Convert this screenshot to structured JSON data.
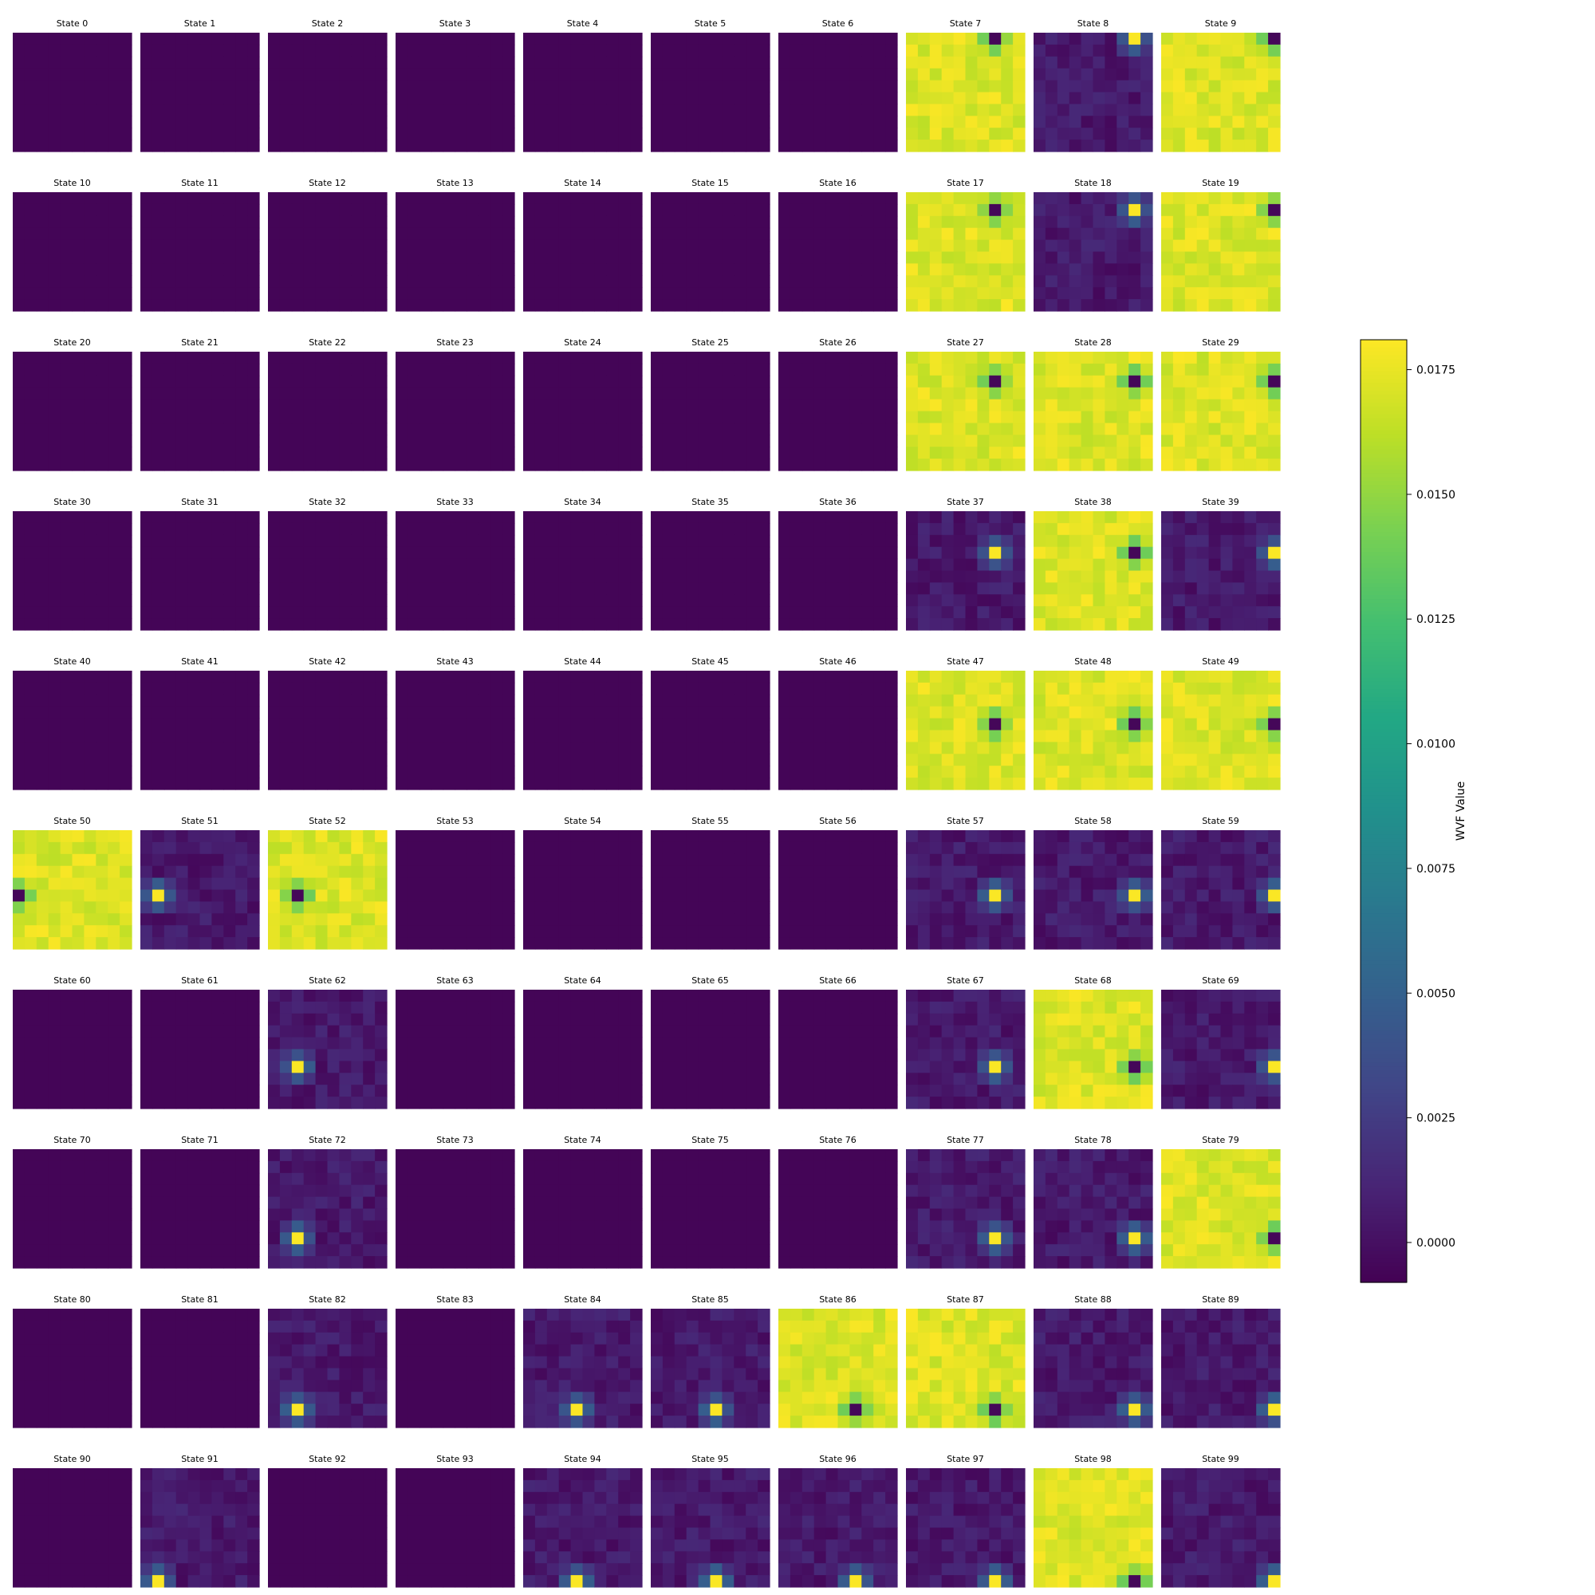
{
  "chart_data": {
    "type": "heatmap",
    "grid_layout": {
      "rows": 10,
      "columns": 10
    },
    "panel_resolution": [
      10,
      10
    ],
    "panel_title_prefix": "State ",
    "panel_titles": [
      "State 0",
      "State 1",
      "State 2",
      "State 3",
      "State 4",
      "State 5",
      "State 6",
      "State 7",
      "State 8",
      "State 9",
      "State 10",
      "State 11",
      "State 12",
      "State 13",
      "State 14",
      "State 15",
      "State 16",
      "State 17",
      "State 18",
      "State 19",
      "State 20",
      "State 21",
      "State 22",
      "State 23",
      "State 24",
      "State 25",
      "State 26",
      "State 27",
      "State 28",
      "State 29",
      "State 30",
      "State 31",
      "State 32",
      "State 33",
      "State 34",
      "State 35",
      "State 36",
      "State 37",
      "State 38",
      "State 39",
      "State 40",
      "State 41",
      "State 42",
      "State 43",
      "State 44",
      "State 45",
      "State 46",
      "State 47",
      "State 48",
      "State 49",
      "State 50",
      "State 51",
      "State 52",
      "State 53",
      "State 54",
      "State 55",
      "State 56",
      "State 57",
      "State 58",
      "State 59",
      "State 60",
      "State 61",
      "State 62",
      "State 63",
      "State 64",
      "State 65",
      "State 66",
      "State 67",
      "State 68",
      "State 69",
      "State 70",
      "State 71",
      "State 72",
      "State 73",
      "State 74",
      "State 75",
      "State 76",
      "State 77",
      "State 78",
      "State 79",
      "State 80",
      "State 81",
      "State 82",
      "State 83",
      "State 84",
      "State 85",
      "State 86",
      "State 87",
      "State 88",
      "State 89",
      "State 90",
      "State 91",
      "State 92",
      "State 93",
      "State 94",
      "State 95",
      "State 96",
      "State 97",
      "State 98",
      "State 99"
    ],
    "panel_description": "Each panel is a 10x10 heatmap of WVF values. 'zero' panels are uniformly ~0 (dark purple). 'bright' panels are mostly ~0.017 (yellow) with a single minimum cell (~0) at [row,col] flanked by ~0.014 neighbours. 'spot' panels are mostly ~0.0005 (dark) with a single maximum cell (~0.018) at [row,col] flanked by ~0.004 neighbours.",
    "panels": [
      {
        "state": 0,
        "kind": "zero"
      },
      {
        "state": 1,
        "kind": "zero"
      },
      {
        "state": 2,
        "kind": "zero"
      },
      {
        "state": 3,
        "kind": "zero"
      },
      {
        "state": 4,
        "kind": "zero"
      },
      {
        "state": 5,
        "kind": "zero"
      },
      {
        "state": 6,
        "kind": "zero"
      },
      {
        "state": 7,
        "kind": "bright",
        "cell": [
          0,
          7
        ]
      },
      {
        "state": 8,
        "kind": "spot",
        "cell": [
          0,
          8
        ]
      },
      {
        "state": 9,
        "kind": "bright",
        "cell": [
          0,
          9
        ]
      },
      {
        "state": 10,
        "kind": "zero"
      },
      {
        "state": 11,
        "kind": "zero"
      },
      {
        "state": 12,
        "kind": "zero"
      },
      {
        "state": 13,
        "kind": "zero"
      },
      {
        "state": 14,
        "kind": "zero"
      },
      {
        "state": 15,
        "kind": "zero"
      },
      {
        "state": 16,
        "kind": "zero"
      },
      {
        "state": 17,
        "kind": "bright",
        "cell": [
          1,
          7
        ]
      },
      {
        "state": 18,
        "kind": "spot",
        "cell": [
          1,
          8
        ]
      },
      {
        "state": 19,
        "kind": "bright",
        "cell": [
          1,
          9
        ]
      },
      {
        "state": 20,
        "kind": "zero"
      },
      {
        "state": 21,
        "kind": "zero"
      },
      {
        "state": 22,
        "kind": "zero"
      },
      {
        "state": 23,
        "kind": "zero"
      },
      {
        "state": 24,
        "kind": "zero"
      },
      {
        "state": 25,
        "kind": "zero"
      },
      {
        "state": 26,
        "kind": "zero"
      },
      {
        "state": 27,
        "kind": "bright",
        "cell": [
          2,
          7
        ]
      },
      {
        "state": 28,
        "kind": "bright",
        "cell": [
          2,
          8
        ]
      },
      {
        "state": 29,
        "kind": "bright",
        "cell": [
          2,
          9
        ]
      },
      {
        "state": 30,
        "kind": "zero"
      },
      {
        "state": 31,
        "kind": "zero"
      },
      {
        "state": 32,
        "kind": "zero"
      },
      {
        "state": 33,
        "kind": "zero"
      },
      {
        "state": 34,
        "kind": "zero"
      },
      {
        "state": 35,
        "kind": "zero"
      },
      {
        "state": 36,
        "kind": "zero"
      },
      {
        "state": 37,
        "kind": "spot",
        "cell": [
          3,
          7
        ]
      },
      {
        "state": 38,
        "kind": "bright",
        "cell": [
          3,
          8
        ]
      },
      {
        "state": 39,
        "kind": "spot",
        "cell": [
          3,
          9
        ]
      },
      {
        "state": 40,
        "kind": "zero"
      },
      {
        "state": 41,
        "kind": "zero"
      },
      {
        "state": 42,
        "kind": "zero"
      },
      {
        "state": 43,
        "kind": "zero"
      },
      {
        "state": 44,
        "kind": "zero"
      },
      {
        "state": 45,
        "kind": "zero"
      },
      {
        "state": 46,
        "kind": "zero"
      },
      {
        "state": 47,
        "kind": "bright",
        "cell": [
          4,
          7
        ]
      },
      {
        "state": 48,
        "kind": "bright",
        "cell": [
          4,
          8
        ]
      },
      {
        "state": 49,
        "kind": "bright",
        "cell": [
          4,
          9
        ]
      },
      {
        "state": 50,
        "kind": "bright",
        "cell": [
          5,
          0
        ]
      },
      {
        "state": 51,
        "kind": "spot",
        "cell": [
          5,
          1
        ]
      },
      {
        "state": 52,
        "kind": "bright",
        "cell": [
          5,
          2
        ]
      },
      {
        "state": 53,
        "kind": "zero"
      },
      {
        "state": 54,
        "kind": "zero"
      },
      {
        "state": 55,
        "kind": "zero"
      },
      {
        "state": 56,
        "kind": "zero"
      },
      {
        "state": 57,
        "kind": "spot",
        "cell": [
          5,
          7
        ]
      },
      {
        "state": 58,
        "kind": "spot",
        "cell": [
          5,
          8
        ]
      },
      {
        "state": 59,
        "kind": "spot",
        "cell": [
          5,
          9
        ]
      },
      {
        "state": 60,
        "kind": "zero"
      },
      {
        "state": 61,
        "kind": "zero"
      },
      {
        "state": 62,
        "kind": "spot",
        "cell": [
          6,
          2
        ]
      },
      {
        "state": 63,
        "kind": "zero"
      },
      {
        "state": 64,
        "kind": "zero"
      },
      {
        "state": 65,
        "kind": "zero"
      },
      {
        "state": 66,
        "kind": "zero"
      },
      {
        "state": 67,
        "kind": "spot",
        "cell": [
          6,
          7
        ]
      },
      {
        "state": 68,
        "kind": "bright",
        "cell": [
          6,
          8
        ]
      },
      {
        "state": 69,
        "kind": "spot",
        "cell": [
          6,
          9
        ]
      },
      {
        "state": 70,
        "kind": "zero"
      },
      {
        "state": 71,
        "kind": "zero"
      },
      {
        "state": 72,
        "kind": "spot",
        "cell": [
          7,
          2
        ]
      },
      {
        "state": 73,
        "kind": "zero"
      },
      {
        "state": 74,
        "kind": "zero"
      },
      {
        "state": 75,
        "kind": "zero"
      },
      {
        "state": 76,
        "kind": "zero"
      },
      {
        "state": 77,
        "kind": "spot",
        "cell": [
          7,
          7
        ]
      },
      {
        "state": 78,
        "kind": "spot",
        "cell": [
          7,
          8
        ]
      },
      {
        "state": 79,
        "kind": "bright",
        "cell": [
          7,
          9
        ]
      },
      {
        "state": 80,
        "kind": "zero"
      },
      {
        "state": 81,
        "kind": "zero"
      },
      {
        "state": 82,
        "kind": "spot",
        "cell": [
          8,
          2
        ]
      },
      {
        "state": 83,
        "kind": "zero"
      },
      {
        "state": 84,
        "kind": "spot",
        "cell": [
          8,
          4
        ]
      },
      {
        "state": 85,
        "kind": "spot",
        "cell": [
          8,
          5
        ]
      },
      {
        "state": 86,
        "kind": "bright",
        "cell": [
          8,
          6
        ]
      },
      {
        "state": 87,
        "kind": "bright",
        "cell": [
          8,
          7
        ]
      },
      {
        "state": 88,
        "kind": "spot",
        "cell": [
          8,
          8
        ]
      },
      {
        "state": 89,
        "kind": "spot",
        "cell": [
          8,
          9
        ]
      },
      {
        "state": 90,
        "kind": "zero"
      },
      {
        "state": 91,
        "kind": "spot",
        "cell": [
          9,
          1
        ]
      },
      {
        "state": 92,
        "kind": "zero"
      },
      {
        "state": 93,
        "kind": "zero"
      },
      {
        "state": 94,
        "kind": "spot",
        "cell": [
          9,
          4
        ]
      },
      {
        "state": 95,
        "kind": "spot",
        "cell": [
          9,
          5
        ]
      },
      {
        "state": 96,
        "kind": "spot",
        "cell": [
          9,
          6
        ]
      },
      {
        "state": 97,
        "kind": "spot",
        "cell": [
          9,
          7
        ]
      },
      {
        "state": 98,
        "kind": "bright",
        "cell": [
          9,
          8
        ]
      },
      {
        "state": 99,
        "kind": "spot",
        "cell": [
          9,
          9
        ]
      }
    ],
    "colorbar": {
      "label": "WVF Value",
      "colormap": "viridis",
      "range": [
        -0.0008,
        0.0181
      ],
      "ticks": [
        0.0,
        0.0025,
        0.005,
        0.0075,
        0.01,
        0.0125,
        0.015,
        0.0175
      ],
      "tick_labels": [
        "0.0000",
        "0.0025",
        "0.0050",
        "0.0075",
        "0.0100",
        "0.0125",
        "0.0150",
        "0.0175"
      ]
    },
    "colors": {
      "viridis_low": "#440154",
      "viridis_mid": "#21918c",
      "viridis_high": "#fde725"
    }
  }
}
